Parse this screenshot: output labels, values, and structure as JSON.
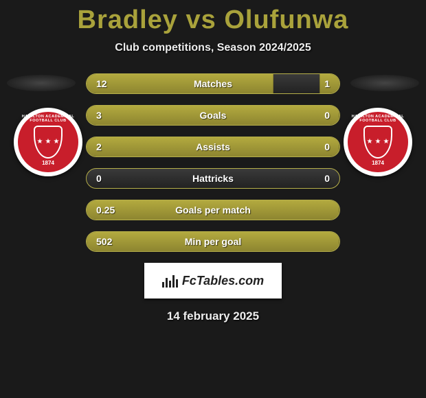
{
  "header": {
    "player_left": "Bradley",
    "vs": "vs",
    "player_right": "Olufunwa",
    "subtitle": "Club competitions, Season 2024/2025"
  },
  "crest": {
    "arc_text": "HAMILTON ACADEMICAL FOOTBALL CLUB",
    "year": "1874",
    "bg_color": "#c81e2b",
    "border_color": "#ffffff"
  },
  "stats": {
    "bar_fill_color": "#a9a23b",
    "bar_track_color": "#2a2a2a",
    "bar_border_color": "#b7b04a",
    "rows": [
      {
        "label": "Matches",
        "left": "12",
        "right": "1",
        "left_pct": 74,
        "right_pct": 8
      },
      {
        "label": "Goals",
        "left": "3",
        "right": "0",
        "left_pct": 100,
        "right_pct": 0
      },
      {
        "label": "Assists",
        "left": "2",
        "right": "0",
        "left_pct": 100,
        "right_pct": 0
      },
      {
        "label": "Hattricks",
        "left": "0",
        "right": "0",
        "left_pct": 0,
        "right_pct": 0
      },
      {
        "label": "Goals per match",
        "left": "0.25",
        "right": "",
        "left_pct": 100,
        "right_pct": 0
      },
      {
        "label": "Min per goal",
        "left": "502",
        "right": "",
        "left_pct": 100,
        "right_pct": 0
      }
    ]
  },
  "brand": {
    "text": "FcTables.com"
  },
  "date": "14 february 2025",
  "colors": {
    "accent": "#a9a23b",
    "background": "#1a1a1a",
    "text": "#ffffff"
  }
}
